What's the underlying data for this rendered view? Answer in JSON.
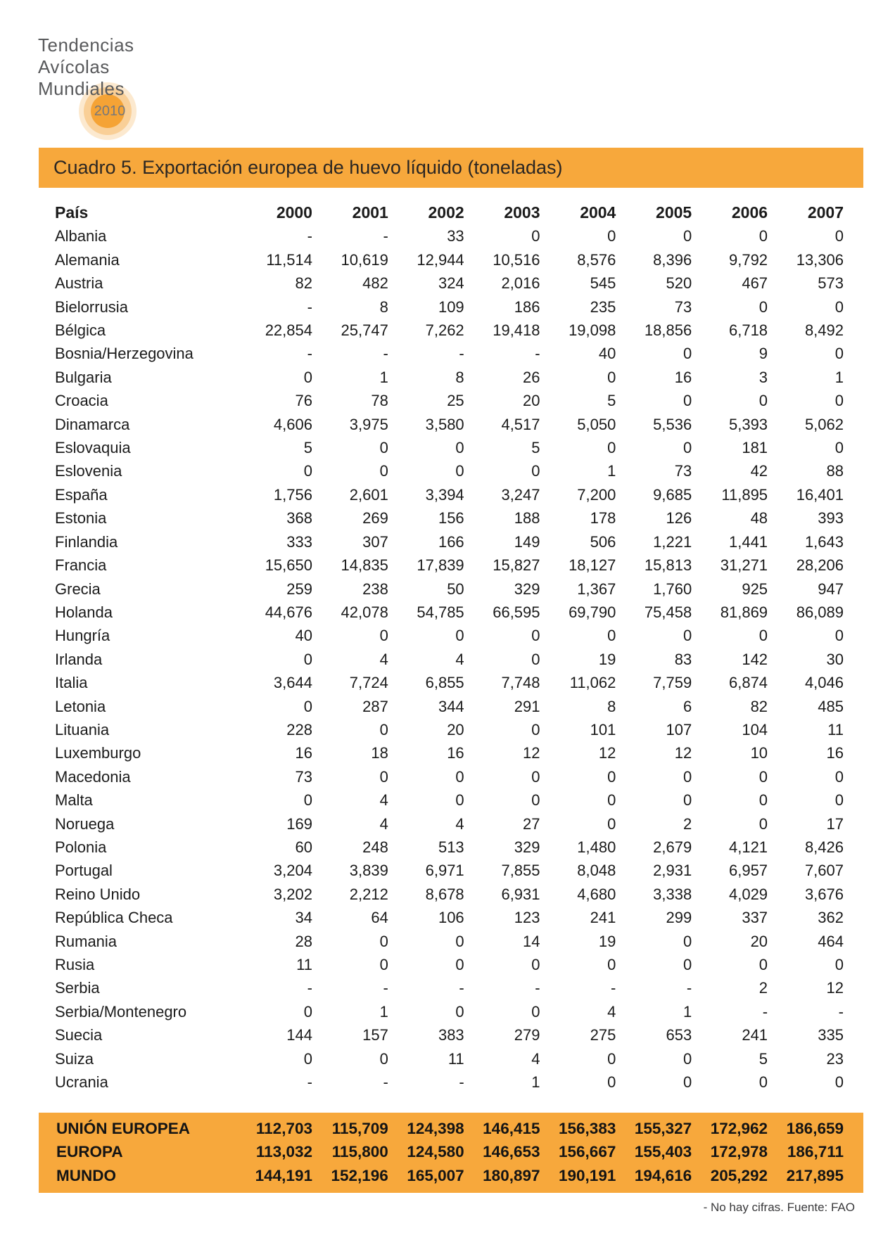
{
  "logo": {
    "lines": [
      "Tendencias",
      "Avícolas",
      "Mundiales"
    ],
    "year": "2010"
  },
  "colors": {
    "accent_orange": "#f7a83c",
    "logo_core_orange": "#f5a335",
    "logo_halo_mid": "#f9cf97",
    "logo_halo_outer": "#fce9cf",
    "logo_gray": "#58595b"
  },
  "table": {
    "title": "Cuadro 5. Exportación europea de huevo líquido (toneladas)",
    "col_header": "País",
    "years": [
      "2000",
      "2001",
      "2002",
      "2003",
      "2004",
      "2005",
      "2006",
      "2007"
    ],
    "rows": [
      {
        "name": "Albania",
        "values": [
          "-",
          "-",
          "33",
          "0",
          "0",
          "0",
          "0",
          "0"
        ]
      },
      {
        "name": "Alemania",
        "values": [
          "11,514",
          "10,619",
          "12,944",
          "10,516",
          "8,576",
          "8,396",
          "9,792",
          "13,306"
        ]
      },
      {
        "name": "Austria",
        "values": [
          "82",
          "482",
          "324",
          "2,016",
          "545",
          "520",
          "467",
          "573"
        ]
      },
      {
        "name": "Bielorrusia",
        "values": [
          "-",
          "8",
          "109",
          "186",
          "235",
          "73",
          "0",
          "0"
        ]
      },
      {
        "name": "Bélgica",
        "values": [
          "22,854",
          "25,747",
          "7,262",
          "19,418",
          "19,098",
          "18,856",
          "6,718",
          "8,492"
        ]
      },
      {
        "name": "Bosnia/Herzegovina",
        "values": [
          "-",
          "-",
          "-",
          "-",
          "40",
          "0",
          "9",
          "0"
        ]
      },
      {
        "name": "Bulgaria",
        "values": [
          "0",
          "1",
          "8",
          "26",
          "0",
          "16",
          "3",
          "1"
        ]
      },
      {
        "name": "Croacia",
        "values": [
          "76",
          "78",
          "25",
          "20",
          "5",
          "0",
          "0",
          "0"
        ]
      },
      {
        "name": "Dinamarca",
        "values": [
          "4,606",
          "3,975",
          "3,580",
          "4,517",
          "5,050",
          "5,536",
          "5,393",
          "5,062"
        ]
      },
      {
        "name": "Eslovaquia",
        "values": [
          "5",
          "0",
          "0",
          "5",
          "0",
          "0",
          "181",
          "0"
        ]
      },
      {
        "name": "Eslovenia",
        "values": [
          "0",
          "0",
          "0",
          "0",
          "1",
          "73",
          "42",
          "88"
        ]
      },
      {
        "name": "España",
        "values": [
          "1,756",
          "2,601",
          "3,394",
          "3,247",
          "7,200",
          "9,685",
          "11,895",
          "16,401"
        ]
      },
      {
        "name": "Estonia",
        "values": [
          "368",
          "269",
          "156",
          "188",
          "178",
          "126",
          "48",
          "393"
        ]
      },
      {
        "name": "Finlandia",
        "values": [
          "333",
          "307",
          "166",
          "149",
          "506",
          "1,221",
          "1,441",
          "1,643"
        ]
      },
      {
        "name": "Francia",
        "values": [
          "15,650",
          "14,835",
          "17,839",
          "15,827",
          "18,127",
          "15,813",
          "31,271",
          "28,206"
        ]
      },
      {
        "name": "Grecia",
        "values": [
          "259",
          "238",
          "50",
          "329",
          "1,367",
          "1,760",
          "925",
          "947"
        ]
      },
      {
        "name": "Holanda",
        "values": [
          "44,676",
          "42,078",
          "54,785",
          "66,595",
          "69,790",
          "75,458",
          "81,869",
          "86,089"
        ]
      },
      {
        "name": "Hungría",
        "values": [
          "40",
          "0",
          "0",
          "0",
          "0",
          "0",
          "0",
          "0"
        ]
      },
      {
        "name": "Irlanda",
        "values": [
          "0",
          "4",
          "4",
          "0",
          "19",
          "83",
          "142",
          "30"
        ]
      },
      {
        "name": "Italia",
        "values": [
          "3,644",
          "7,724",
          "6,855",
          "7,748",
          "11,062",
          "7,759",
          "6,874",
          "4,046"
        ]
      },
      {
        "name": "Letonia",
        "values": [
          "0",
          "287",
          "344",
          "291",
          "8",
          "6",
          "82",
          "485"
        ]
      },
      {
        "name": "Lituania",
        "values": [
          "228",
          "0",
          "20",
          "0",
          "101",
          "107",
          "104",
          "11"
        ]
      },
      {
        "name": "Luxemburgo",
        "values": [
          "16",
          "18",
          "16",
          "12",
          "12",
          "12",
          "10",
          "16"
        ]
      },
      {
        "name": "Macedonia",
        "values": [
          "73",
          "0",
          "0",
          "0",
          "0",
          "0",
          "0",
          "0"
        ]
      },
      {
        "name": "Malta",
        "values": [
          "0",
          "4",
          "0",
          "0",
          "0",
          "0",
          "0",
          "0"
        ]
      },
      {
        "name": "Noruega",
        "values": [
          "169",
          "4",
          "4",
          "27",
          "0",
          "2",
          "0",
          "17"
        ]
      },
      {
        "name": "Polonia",
        "values": [
          "60",
          "248",
          "513",
          "329",
          "1,480",
          "2,679",
          "4,121",
          "8,426"
        ]
      },
      {
        "name": "Portugal",
        "values": [
          "3,204",
          "3,839",
          "6,971",
          "7,855",
          "8,048",
          "2,931",
          "6,957",
          "7,607"
        ]
      },
      {
        "name": "Reino Unido",
        "values": [
          "3,202",
          "2,212",
          "8,678",
          "6,931",
          "4,680",
          "3,338",
          "4,029",
          "3,676"
        ]
      },
      {
        "name": "República Checa",
        "values": [
          "34",
          "64",
          "106",
          "123",
          "241",
          "299",
          "337",
          "362"
        ]
      },
      {
        "name": "Rumania",
        "values": [
          "28",
          "0",
          "0",
          "14",
          "19",
          "0",
          "20",
          "464"
        ]
      },
      {
        "name": "Rusia",
        "values": [
          "11",
          "0",
          "0",
          "0",
          "0",
          "0",
          "0",
          "0"
        ]
      },
      {
        "name": "Serbia",
        "values": [
          "-",
          "-",
          "-",
          "-",
          "-",
          "-",
          "2",
          "12"
        ]
      },
      {
        "name": "Serbia/Montenegro",
        "values": [
          "0",
          "1",
          "0",
          "0",
          "4",
          "1",
          "-",
          "-"
        ]
      },
      {
        "name": "Suecia",
        "values": [
          "144",
          "157",
          "383",
          "279",
          "275",
          "653",
          "241",
          "335"
        ]
      },
      {
        "name": "Suiza",
        "values": [
          "0",
          "0",
          "11",
          "4",
          "0",
          "0",
          "5",
          "23"
        ]
      },
      {
        "name": "Ucrania",
        "values": [
          "-",
          "-",
          "-",
          "1",
          "0",
          "0",
          "0",
          "0"
        ]
      }
    ],
    "summary": [
      {
        "name": "UNIÓN EUROPEA",
        "values": [
          "112,703",
          "115,709",
          "124,398",
          "146,415",
          "156,383",
          "155,327",
          "172,962",
          "186,659"
        ]
      },
      {
        "name": "EUROPA",
        "values": [
          "113,032",
          "115,800",
          "124,580",
          "146,653",
          "156,667",
          "155,403",
          "172,978",
          "186,711"
        ]
      },
      {
        "name": "MUNDO",
        "values": [
          "144,191",
          "152,196",
          "165,007",
          "180,897",
          "190,191",
          "194,616",
          "205,292",
          "217,895"
        ]
      }
    ]
  },
  "footer": {
    "note": "- No hay cifras. Fuente: FAO"
  }
}
